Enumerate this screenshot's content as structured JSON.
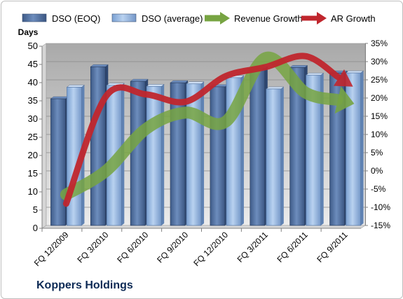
{
  "chart_data": {
    "type": "bar",
    "title": "",
    "company": "Koppers Holdings",
    "categories": [
      "FQ 12/2009",
      "FQ 3/2010",
      "FQ 6/2010",
      "FQ 9/2010",
      "FQ 12/2010",
      "FQ 3/2011",
      "FQ 6/2011",
      "FQ 9/2011"
    ],
    "ylabel": "Days",
    "ylim": [
      0,
      50
    ],
    "y_ticks": [
      "0",
      "5",
      "10",
      "15",
      "20",
      "25",
      "30",
      "35",
      "40",
      "45",
      "50"
    ],
    "y2lim": [
      -15,
      35
    ],
    "y2_ticks": [
      "-15%",
      "-10%",
      "-5%",
      "0%",
      "5%",
      "10%",
      "15%",
      "20%",
      "25%",
      "30%",
      "35%"
    ],
    "grid": true,
    "legend_position": "top",
    "series": [
      {
        "name": "DSO (EOQ)",
        "kind": "bar",
        "axis": "left",
        "color": "#4f6f9e",
        "values": [
          34.8,
          43.6,
          39.6,
          39.2,
          38.1,
          43.1,
          43.4,
          41.9
        ]
      },
      {
        "name": "DSO (average)",
        "kind": "bar",
        "axis": "left",
        "color": "#8fb2de",
        "values": [
          38.0,
          38.5,
          38.2,
          38.9,
          40.6,
          37.5,
          41.3,
          41.9
        ]
      },
      {
        "name": "Revenue Growth",
        "kind": "arrow-line",
        "axis": "right",
        "color": "#77a442",
        "values": [
          -6.5,
          0.0,
          11.5,
          16.0,
          13.5,
          31.0,
          21.5,
          19.0
        ]
      },
      {
        "name": "AR Growth",
        "kind": "arrow-line",
        "axis": "right",
        "color": "#c0262d",
        "values": [
          -9.0,
          20.5,
          21.0,
          19.0,
          26.0,
          28.5,
          31.5,
          24.5
        ]
      }
    ]
  }
}
